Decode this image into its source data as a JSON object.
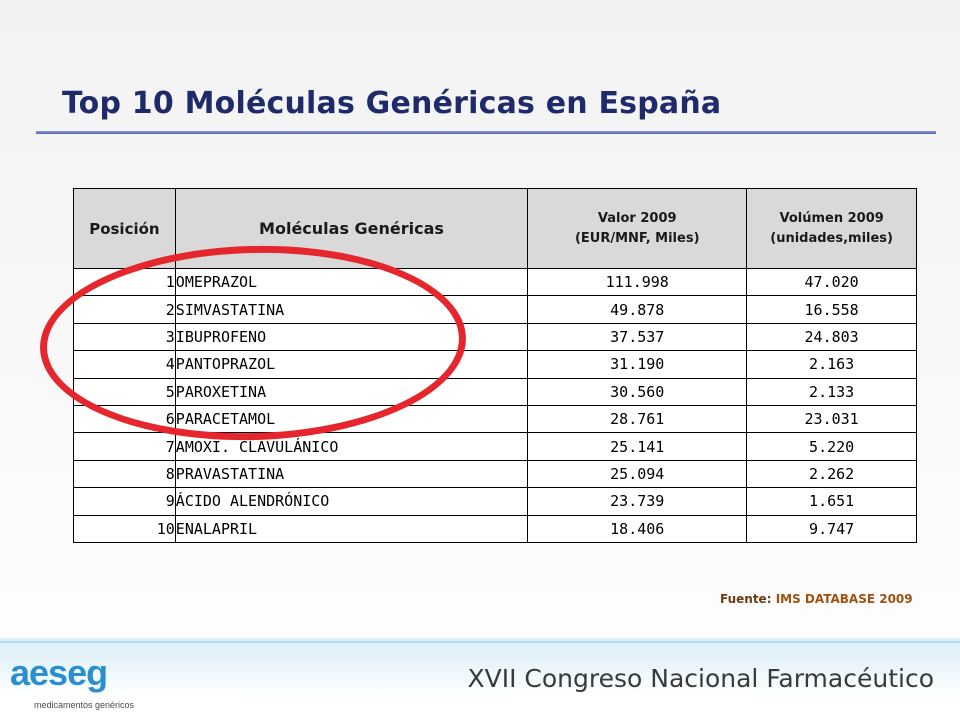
{
  "slide": {
    "title": "Top 10 Moléculas Genéricas en España",
    "source_label": "Fuente:",
    "source_text": "IMS DATABASE 2009",
    "footer": "XVII Congreso Nacional Farmacéutico",
    "logo_word": "aeseg",
    "logo_sub": "medicamentos genéricos"
  },
  "table": {
    "headers": {
      "position": "Posición",
      "molecule": "Moléculas Genéricas",
      "value_line1": "Valor 2009",
      "value_line2": "(EUR/MNF, Miles)",
      "volume_line1": "Volúmen 2009",
      "volume_line2": "(unidades,miles)"
    },
    "rows": [
      {
        "pos": "1",
        "molecule": "OMEPRAZOL",
        "value": "111.998",
        "volume": "47.020"
      },
      {
        "pos": "2",
        "molecule": "SIMVASTATINA",
        "value": "49.878",
        "volume": "16.558"
      },
      {
        "pos": "3",
        "molecule": "IBUPROFENO",
        "value": "37.537",
        "volume": "24.803"
      },
      {
        "pos": "4",
        "molecule": "PANTOPRAZOL",
        "value": "31.190",
        "volume": "2.163"
      },
      {
        "pos": "5",
        "molecule": "PAROXETINA",
        "value": "30.560",
        "volume": "2.133"
      },
      {
        "pos": "6",
        "molecule": "PARACETAMOL",
        "value": "28.761",
        "volume": "23.031"
      },
      {
        "pos": "7",
        "molecule": "AMOXI. CLAVULÁNICO",
        "value": "25.141",
        "volume": "5.220"
      },
      {
        "pos": "8",
        "molecule": "PRAVASTATINA",
        "value": "25.094",
        "volume": "2.262"
      },
      {
        "pos": "9",
        "molecule": "ÁCIDO ALENDRÓNICO",
        "value": "23.739",
        "volume": "1.651"
      },
      {
        "pos": "10",
        "molecule": "ENALAPRIL",
        "value": "18.406",
        "volume": "9.747"
      }
    ]
  },
  "colors": {
    "title": "#1f2a6b",
    "highlight_ring": "#e5262d",
    "header_fill": "#d9d9d9",
    "logo": "#2a8fcf"
  }
}
